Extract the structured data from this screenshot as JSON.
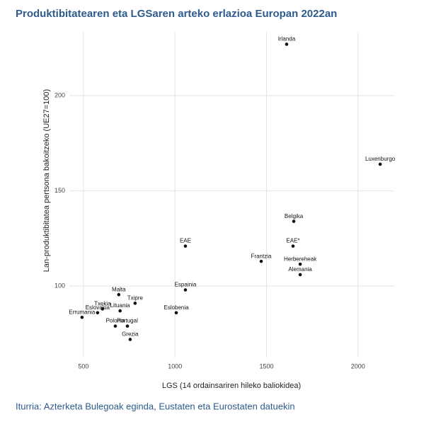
{
  "chart_data": {
    "type": "scatter",
    "title": "Produktibitatearen eta LGSaren arteko erlazioa Europan 2022an",
    "x_label": "LGS (14 ordainsariren hileko baliokidea)",
    "y_label": "Lan-produktibitatea pertsona bakoitzeko (UE27=100)",
    "source": "Iturria: Azterketa Bulegoak eginda, Eustaten eta Eurostaten datuekin",
    "color": "#111111",
    "grid": true,
    "xlim": [
      423,
      2198
    ],
    "ylim": [
      62.5,
      233.5
    ],
    "xticks": [
      500,
      1000,
      1500,
      2000
    ],
    "yticks": [
      100,
      150,
      200
    ],
    "labels": [
      "Irlanda",
      "Luxenburgo",
      "Belgika",
      "EAE*",
      "Herbereheak",
      "Alemania",
      "Frantzia",
      "EAE",
      "Espainia",
      "Eslobenia",
      "Malta",
      "Txipre",
      "Lituania",
      "Txekia",
      "Eslovakia",
      "Errumania",
      "Polonia",
      "Portugal",
      "Grezia"
    ],
    "x": [
      1610,
      2121,
      1649,
      1645,
      1684,
      1684,
      1471,
      1057,
      1057,
      1007,
      693,
      782,
      700,
      604,
      577,
      492,
      674,
      740,
      755
    ],
    "values": [
      227,
      164,
      134,
      121,
      111.5,
      106,
      113,
      121,
      98,
      86,
      95.5,
      91,
      87,
      88,
      86,
      83.6,
      79,
      79,
      72
    ]
  }
}
